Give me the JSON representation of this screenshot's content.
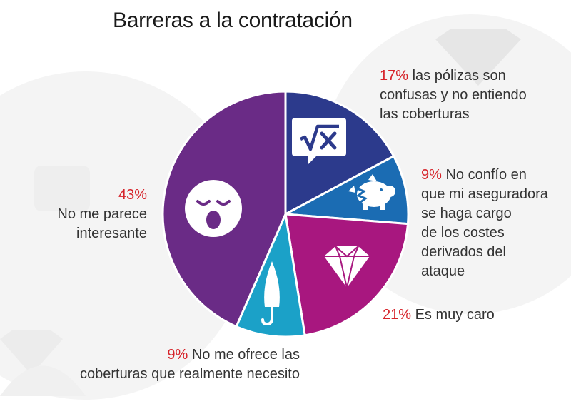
{
  "title": "Barreras a la contratación",
  "colors": {
    "slice_1": "#2c3a8c",
    "slice_2": "#1b6cb3",
    "slice_3": "#a8177f",
    "slice_4": "#1ba1c8",
    "slice_5": "#6a2b86",
    "percent_text": "#d6232a",
    "background_shapes": "#ececec"
  },
  "chart_data": {
    "type": "pie",
    "title": "Barreras a la contratación",
    "legend": "labels-around",
    "slices": [
      {
        "value": 17,
        "percent_label": "17%",
        "lines": [
          "las pólizas son",
          "confusas y no entiendo",
          "las coberturas"
        ],
        "icon": "math-formula-icon"
      },
      {
        "value": 9,
        "percent_label": "9%",
        "lines": [
          "No confío en",
          "que mi aseguradora",
          "se haga cargo",
          "de los costes",
          "derivados del",
          "ataque"
        ],
        "icon": "broken-piggy-bank-icon"
      },
      {
        "value": 21,
        "percent_label": "21%",
        "lines": [
          "Es muy caro"
        ],
        "icon": "diamond-icon"
      },
      {
        "value": 9,
        "percent_label": "9%",
        "lines": [
          "No me ofrece las",
          "coberturas que realmente necesito"
        ],
        "icon": "umbrella-icon"
      },
      {
        "value": 43,
        "percent_label": "43%",
        "lines": [
          "No me parece",
          "interesante"
        ],
        "icon": "yawning-face-icon"
      }
    ]
  }
}
